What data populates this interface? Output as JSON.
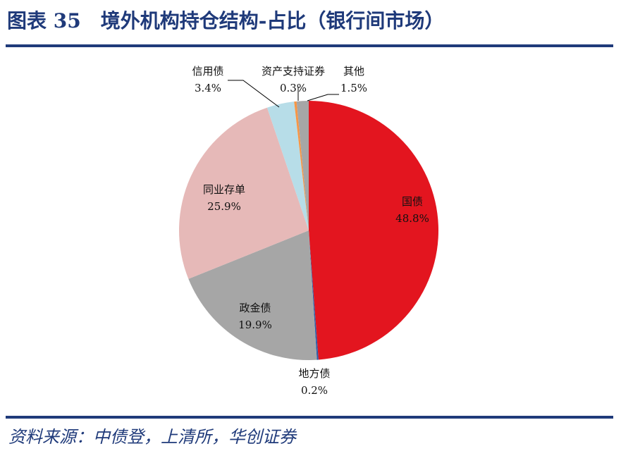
{
  "header": {
    "figure_number": "图表 35",
    "title": "境外机构持仓结构-占比（银行间市场）"
  },
  "footer": {
    "source": "资料来源：中债登，上清所，华创证券"
  },
  "chart_data": {
    "type": "pie",
    "title": "",
    "legend": "none",
    "slices": [
      {
        "label": "国债",
        "value": 48.8,
        "display": "48.8%",
        "color": "#e3151f"
      },
      {
        "label": "地方债",
        "value": 0.2,
        "display": "0.2%",
        "color": "#2f5fa8"
      },
      {
        "label": "政金债",
        "value": 19.9,
        "display": "19.9%",
        "color": "#a6a6a6"
      },
      {
        "label": "同业存单",
        "value": 25.9,
        "display": "25.9%",
        "color": "#e6b9b8"
      },
      {
        "label": "信用债",
        "value": 3.4,
        "display": "3.4%",
        "color": "#b7dde8"
      },
      {
        "label": "资产支持证券",
        "value": 0.3,
        "display": "0.3%",
        "color": "#f79646"
      },
      {
        "label": "其他",
        "value": 1.5,
        "display": "1.5%",
        "color": "#a6a6a6"
      }
    ]
  }
}
